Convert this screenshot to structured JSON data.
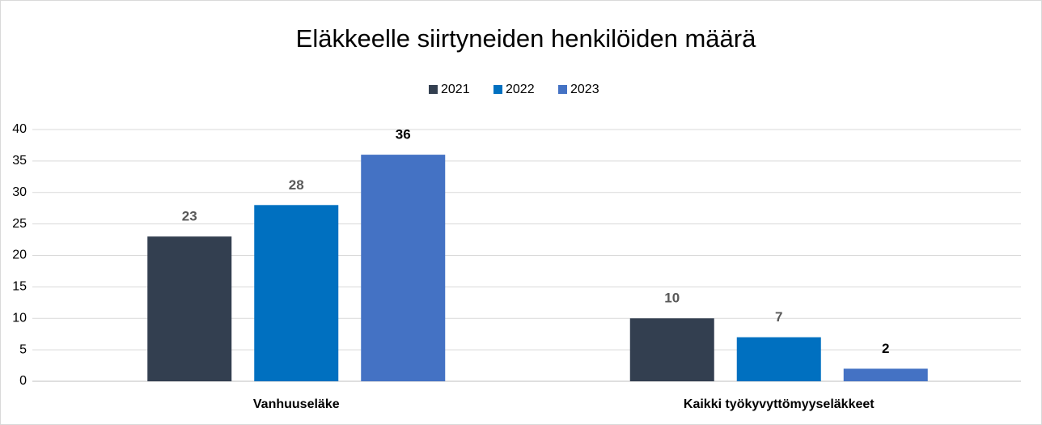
{
  "chart_data": {
    "type": "bar",
    "title": "Eläkkeelle siirtyneiden henkilöiden määrä",
    "categories": [
      "Vanhuuseläke",
      "Kaikki työkyvyttömyyseläkkeet"
    ],
    "series": [
      {
        "name": "2021",
        "color": "#333f50",
        "label_color": "#595959",
        "values": [
          23,
          10
        ]
      },
      {
        "name": "2022",
        "color": "#0070c0",
        "label_color": "#595959",
        "values": [
          28,
          7
        ]
      },
      {
        "name": "2023",
        "color": "#4472c4",
        "label_color": "#000000",
        "values": [
          36,
          2
        ]
      }
    ],
    "ylim": [
      0,
      40
    ],
    "yticks": [
      0,
      5,
      10,
      15,
      20,
      25,
      30,
      35,
      40
    ],
    "grid": true,
    "legend": "top"
  }
}
